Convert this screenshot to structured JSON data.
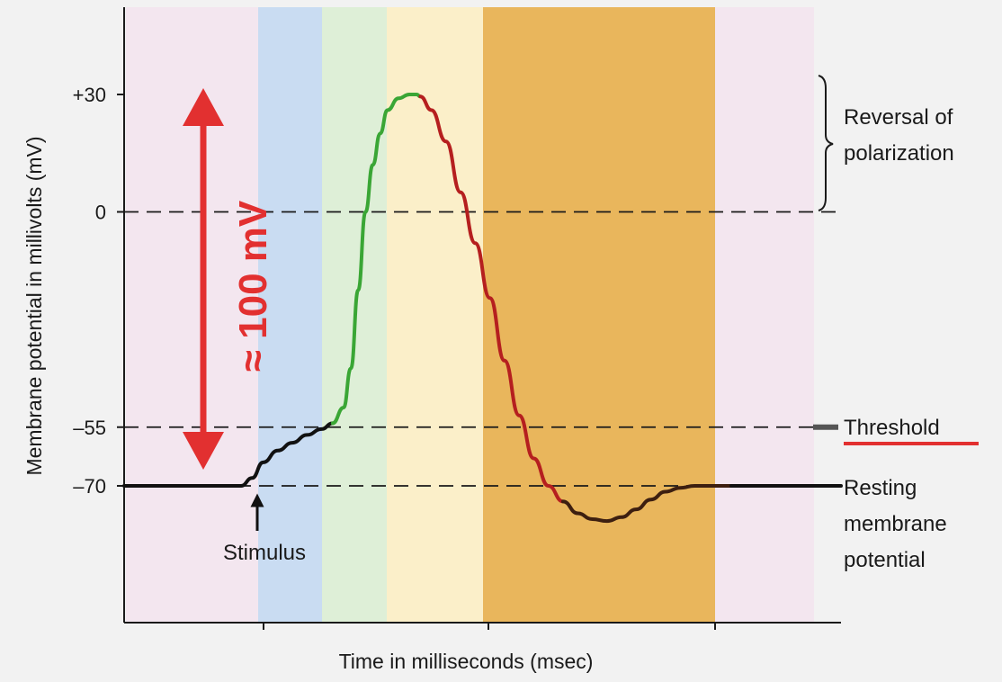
{
  "chart_data": {
    "type": "line",
    "title": "",
    "xlabel": "Time in milliseconds (msec)",
    "ylabel": "Membrane potential in millivolts (mV)",
    "ylim": [
      -100,
      45
    ],
    "y_ticks": [
      {
        "value": 30,
        "label": "+30"
      },
      {
        "value": 0,
        "label": "0"
      },
      {
        "value": -55,
        "label": "–55"
      },
      {
        "value": -70,
        "label": "–70"
      }
    ],
    "reference_lines": [
      {
        "value": 0,
        "style": "dashed"
      },
      {
        "value": -55,
        "style": "dashed"
      },
      {
        "value": -70,
        "style": "dashed"
      }
    ],
    "phase_bands": [
      {
        "color": "#f3e6ef"
      },
      {
        "color": "#c9dcf2"
      },
      {
        "color": "#deefd7"
      },
      {
        "color": "#fbefc9"
      },
      {
        "color": "#e9b65c"
      },
      {
        "color": "#f3e6ef"
      }
    ],
    "series": [
      {
        "segments": [
          {
            "color": "#111111",
            "points": [
              [
                0,
                -70
              ],
              [
                1.6,
                -70
              ],
              [
                1.75,
                -68
              ],
              [
                1.9,
                -64
              ],
              [
                2.1,
                -61
              ],
              [
                2.3,
                -59
              ],
              [
                2.5,
                -57
              ],
              [
                2.7,
                -55.5
              ],
              [
                2.85,
                -54
              ]
            ]
          },
          {
            "color": "#3aa635",
            "points": [
              [
                2.85,
                -54
              ],
              [
                3.0,
                -50
              ],
              [
                3.1,
                -40
              ],
              [
                3.2,
                -20
              ],
              [
                3.3,
                0
              ],
              [
                3.4,
                12
              ],
              [
                3.5,
                20
              ],
              [
                3.6,
                26
              ],
              [
                3.75,
                29
              ],
              [
                3.9,
                30
              ],
              [
                4.0,
                30
              ],
              [
                4.05,
                29.5
              ]
            ]
          },
          {
            "color": "#b51f1f",
            "points": [
              [
                4.05,
                29.5
              ],
              [
                4.2,
                26
              ],
              [
                4.4,
                18
              ],
              [
                4.6,
                5
              ],
              [
                4.8,
                -8
              ],
              [
                5.0,
                -22
              ],
              [
                5.2,
                -38
              ],
              [
                5.4,
                -52
              ],
              [
                5.6,
                -63
              ],
              [
                5.8,
                -70
              ],
              [
                6.0,
                -74
              ]
            ]
          },
          {
            "color": "#3d1f10",
            "points": [
              [
                6.0,
                -74
              ],
              [
                6.2,
                -77
              ],
              [
                6.4,
                -78.5
              ],
              [
                6.6,
                -79
              ],
              [
                6.8,
                -78
              ],
              [
                7.0,
                -76
              ],
              [
                7.2,
                -73.5
              ],
              [
                7.4,
                -71.5
              ],
              [
                7.6,
                -70.5
              ],
              [
                7.8,
                -70
              ],
              [
                8.3,
                -70
              ]
            ]
          },
          {
            "color": "#111111",
            "points": [
              [
                8.3,
                -70
              ],
              [
                9.8,
                -70
              ]
            ]
          }
        ]
      }
    ],
    "annotations": {
      "amplitude_label": "≈ 100 mV",
      "stimulus_label": "Stimulus",
      "reversal_label": [
        "Reversal of",
        "polarization"
      ],
      "threshold_label": "Threshold",
      "resting_label": [
        "Resting",
        "membrane",
        "potential"
      ]
    },
    "colors": {
      "amplitude_arrow": "#e23030",
      "threshold_underline": "#e23030",
      "dashed_line": "#1a1a1a"
    },
    "grid": false,
    "legend": "none"
  }
}
